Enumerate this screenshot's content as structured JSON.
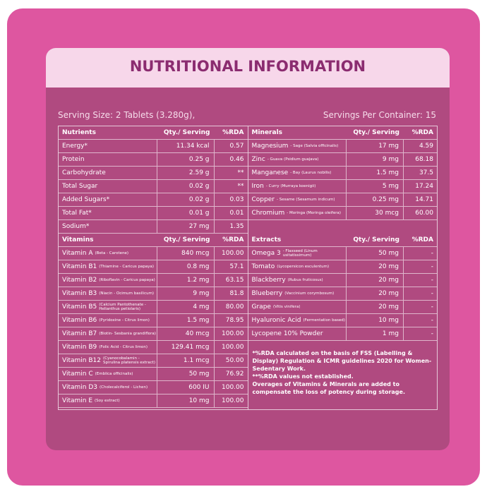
{
  "header": {
    "title": "NUTRITIONAL INFORMATION"
  },
  "serving": {
    "size": "Serving Size: 2 Tablets (3.280g),",
    "per_container": "Servings Per Container: 15"
  },
  "table": {
    "left": [
      {
        "header": [
          "Nutrients",
          "Qty./ Serving",
          "%RDA"
        ],
        "rows": [
          {
            "name": "Energy*",
            "qty": "11.34 kcal",
            "rda": "0.57"
          },
          {
            "name": "Protein",
            "qty": "0.25 g",
            "rda": "0.46"
          },
          {
            "name": "Carbohydrate",
            "qty": "2.59 g",
            "rda": "**"
          },
          {
            "name": "Total Sugar",
            "qty": "0.02 g",
            "rda": "**"
          },
          {
            "name": "Added Sugars*",
            "qty": "0.02 g",
            "rda": "0.03"
          },
          {
            "name": "Total Fat*",
            "qty": "0.01 g",
            "rda": "0.01"
          },
          {
            "name": "Sodium*",
            "qty": "27 mg",
            "rda": "1.35"
          }
        ]
      },
      {
        "header": [
          "Vitamins",
          "Qty./ Serving",
          "%RDA"
        ],
        "rows": [
          {
            "name": "Vitamin A",
            "source": "(Beta - Carotene)",
            "qty": "840 mcg",
            "rda": "100.00"
          },
          {
            "name": "Vitamin B1",
            "source": "(Thiamine - Caricus papaya)",
            "qty": "0.8 mg",
            "rda": "57.1"
          },
          {
            "name": "Vitamin B2",
            "source": "(Riboflavin - Caricus papaya)",
            "qty": "1.2 mg",
            "rda": "63.15"
          },
          {
            "name": "Vitamin B3",
            "source": "(Niacin - Ocimum basilicum)",
            "qty": "9 mg",
            "rda": "81.8"
          },
          {
            "name": "Vitamin B5",
            "source": "(Calcium Pantothenate - Helianthus petiolaris)",
            "qty": "4 mg",
            "rda": "80.00"
          },
          {
            "name": "Vitamin B6",
            "source": "(Pyridoxine - Citrus limon)",
            "qty": "1.5 mg",
            "rda": "78.95"
          },
          {
            "name": "Vitamin B7",
            "source": "(Biotin- Sesbania grandiflora)",
            "qty": "40 mcg",
            "rda": "100.00"
          },
          {
            "name": "Vitamin B9",
            "source": "(Folic Acid - Citrus limon)",
            "qty": "129.41 mcg",
            "rda": "100.00"
          },
          {
            "name": "Vitamin B12",
            "source": "(Cyanocobalamin - Spirulina platensis extract)",
            "qty": "1.1 mcg",
            "rda": "50.00"
          },
          {
            "name": "Vitamin C",
            "source": "(Emblica officinalis)",
            "qty": "50 mg",
            "rda": "76.92"
          },
          {
            "name": "Vitamin D3",
            "source": "(Cholecalciferol - Lichen)",
            "qty": "600 IU",
            "rda": "100.00"
          },
          {
            "name": "Vitamin E",
            "source": "(Soy extract)",
            "qty": "10 mg",
            "rda": "100.00"
          }
        ]
      }
    ],
    "right": [
      {
        "header": [
          "Minerals",
          "Qty./ Serving",
          "%RDA"
        ],
        "rows": [
          {
            "name": "Magnesium",
            "source": "- Sage (Salvia officinalis)",
            "qty": "17 mg",
            "rda": "4.59"
          },
          {
            "name": "Zinc",
            "source": "- Guava (Psidium guajava)",
            "qty": "9 mg",
            "rda": "68.18"
          },
          {
            "name": "Manganese",
            "source": "- Bay (Laurus nobilis)",
            "qty": "1.5 mg",
            "rda": "37.5"
          },
          {
            "name": "Iron",
            "source": "- Curry (Murraya koenigii)",
            "qty": "5 mg",
            "rda": "17.24"
          },
          {
            "name": "Copper",
            "source": "- Sesame (Sesamum indicum)",
            "qty": "0.25 mg",
            "rda": "14.71"
          },
          {
            "name": "Chromium",
            "source": "- Moringa (Moringa oleifera)",
            "qty": "30 mcg",
            "rda": "60.00"
          }
        ]
      },
      {
        "header": [
          "Extracts",
          "Qty./ Serving",
          "%RDA"
        ],
        "rows": [
          {
            "name": "Omega 3",
            "source": "- Flaxseed (Linum usitatissimum)",
            "qty": "50 mg",
            "rda": "-"
          },
          {
            "name": "Tomato",
            "source": "(Lycopersicon esculentum)",
            "qty": "20 mg",
            "rda": "-"
          },
          {
            "name": "Blackberry",
            "source": "(Rubus fruticosus)",
            "qty": "20 mg",
            "rda": "-"
          },
          {
            "name": "Blueberry",
            "source": "(Vaccinium corymbosum)",
            "qty": "20 mg",
            "rda": "-"
          },
          {
            "name": "Grape",
            "source": "(Vitis vinifera)",
            "qty": "20 mg",
            "rda": "-"
          },
          {
            "name": "Hyaluronic Acid",
            "source": "(Fermentation based)",
            "qty": "10 mg",
            "rda": "-"
          },
          {
            "name": "Lycopene 10% Powder",
            "qty": "1 mg",
            "rda": "-"
          }
        ]
      }
    ],
    "notes": [
      "*%RDA calculated on the basis of FSS (Labelling & Display) Regulation & ICMR guidelines 2020 for Women-Sedentary Work.",
      "**%RDA values not established.",
      "Overages of Vitamins & Minerals are added to compensate the loss of potency during storage."
    ]
  }
}
